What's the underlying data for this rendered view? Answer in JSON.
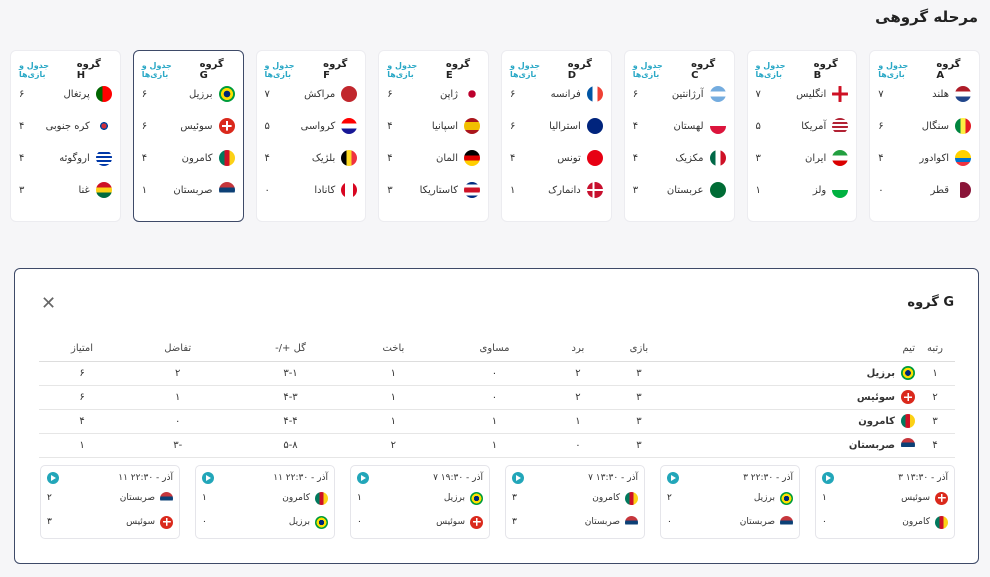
{
  "page_title": "مرحله گروهی",
  "groups": [
    {
      "name": "گروه A",
      "link": "جدول و بازی‌ها",
      "teams": [
        {
          "name": "هلند",
          "pts": "۷",
          "flag": "nl"
        },
        {
          "name": "سنگال",
          "pts": "۶",
          "flag": "sn"
        },
        {
          "name": "اکوادور",
          "pts": "۴",
          "flag": "ec"
        },
        {
          "name": "قطر",
          "pts": "۰",
          "flag": "qa"
        }
      ]
    },
    {
      "name": "گروه B",
      "link": "جدول و بازی‌ها",
      "teams": [
        {
          "name": "انگلیس",
          "pts": "۷",
          "flag": "en"
        },
        {
          "name": "آمریکا",
          "pts": "۵",
          "flag": "us"
        },
        {
          "name": "ایران",
          "pts": "۳",
          "flag": "ir"
        },
        {
          "name": "ولز",
          "pts": "۱",
          "flag": "wl"
        }
      ]
    },
    {
      "name": "گروه C",
      "link": "جدول و بازی‌ها",
      "teams": [
        {
          "name": "آرژانتین",
          "pts": "۶",
          "flag": "ar"
        },
        {
          "name": "لهستان",
          "pts": "۴",
          "flag": "pl"
        },
        {
          "name": "مکزیک",
          "pts": "۴",
          "flag": "mx"
        },
        {
          "name": "عربستان",
          "pts": "۳",
          "flag": "sa"
        }
      ]
    },
    {
      "name": "گروه D",
      "link": "جدول و بازی‌ها",
      "teams": [
        {
          "name": "فرانسه",
          "pts": "۶",
          "flag": "fr"
        },
        {
          "name": "استرالیا",
          "pts": "۶",
          "flag": "au"
        },
        {
          "name": "تونس",
          "pts": "۴",
          "flag": "tn"
        },
        {
          "name": "دانمارک",
          "pts": "۱",
          "flag": "dk"
        }
      ]
    },
    {
      "name": "گروه E",
      "link": "جدول و بازی‌ها",
      "teams": [
        {
          "name": "ژاپن",
          "pts": "۶",
          "flag": "jp"
        },
        {
          "name": "اسپانیا",
          "pts": "۴",
          "flag": "es"
        },
        {
          "name": "المان",
          "pts": "۴",
          "flag": "de"
        },
        {
          "name": "کاستاریکا",
          "pts": "۳",
          "flag": "cr"
        }
      ]
    },
    {
      "name": "گروه F",
      "link": "جدول و بازی‌ها",
      "teams": [
        {
          "name": "مراکش",
          "pts": "۷",
          "flag": "ma"
        },
        {
          "name": "کرواسی",
          "pts": "۵",
          "flag": "hr"
        },
        {
          "name": "بلژیک",
          "pts": "۴",
          "flag": "be"
        },
        {
          "name": "کانادا",
          "pts": "۰",
          "flag": "ca"
        }
      ]
    },
    {
      "name": "گروه G",
      "link": "جدول و بازی‌ها",
      "selected": true,
      "teams": [
        {
          "name": "برزیل",
          "pts": "۶",
          "flag": "br"
        },
        {
          "name": "سوئیس",
          "pts": "۶",
          "flag": "ch"
        },
        {
          "name": "کامرون",
          "pts": "۴",
          "flag": "cm"
        },
        {
          "name": "صربستان",
          "pts": "۱",
          "flag": "rs"
        }
      ]
    },
    {
      "name": "گروه H",
      "link": "جدول و بازی‌ها",
      "teams": [
        {
          "name": "پرتغال",
          "pts": "۶",
          "flag": "pt"
        },
        {
          "name": "کره جنوبی",
          "pts": "۴",
          "flag": "kr"
        },
        {
          "name": "اروگوئه",
          "pts": "۴",
          "flag": "uy"
        },
        {
          "name": "غنا",
          "pts": "۳",
          "flag": "gh"
        }
      ]
    }
  ],
  "detail": {
    "title": "گروه G",
    "columns": [
      "رتبه",
      "تیم",
      "بازی",
      "برد",
      "مساوی",
      "باخت",
      "گل +/-",
      "تفاضل",
      "امتیاز"
    ],
    "rows": [
      {
        "rank": "۱",
        "team": "برزیل",
        "flag": "br",
        "p": "۳",
        "w": "۲",
        "d": "۰",
        "l": "۱",
        "g": "۳-۱",
        "diff": "۲",
        "pts": "۶"
      },
      {
        "rank": "۲",
        "team": "سوئیس",
        "flag": "ch",
        "p": "۳",
        "w": "۲",
        "d": "۰",
        "l": "۱",
        "g": "۴-۳",
        "diff": "۱",
        "pts": "۶"
      },
      {
        "rank": "۳",
        "team": "کامرون",
        "flag": "cm",
        "p": "۳",
        "w": "۱",
        "d": "۱",
        "l": "۱",
        "g": "۴-۴",
        "diff": "۰",
        "pts": "۴"
      },
      {
        "rank": "۴",
        "team": "صربستان",
        "flag": "rs",
        "p": "۳",
        "w": "۰",
        "d": "۱",
        "l": "۲",
        "g": "۵-۸",
        "diff": "-۳",
        "pts": "۱"
      }
    ],
    "matches": [
      {
        "date": "۳ آذر - ۱۳:۳۰",
        "a": {
          "name": "سوئیس",
          "flag": "ch",
          "score": "۱"
        },
        "b": {
          "name": "کامرون",
          "flag": "cm",
          "score": "۰"
        }
      },
      {
        "date": "۳ آذر - ۲۲:۳۰",
        "a": {
          "name": "برزیل",
          "flag": "br",
          "score": "۲"
        },
        "b": {
          "name": "صربستان",
          "flag": "rs",
          "score": "۰"
        }
      },
      {
        "date": "۷ آذر - ۱۳:۳۰",
        "a": {
          "name": "کامرون",
          "flag": "cm",
          "score": "۳"
        },
        "b": {
          "name": "صربستان",
          "flag": "rs",
          "score": "۳"
        }
      },
      {
        "date": "۷ آذر - ۱۹:۳۰",
        "a": {
          "name": "برزیل",
          "flag": "br",
          "score": "۱"
        },
        "b": {
          "name": "سوئیس",
          "flag": "ch",
          "score": "۰"
        }
      },
      {
        "date": "۱۱ آذر - ۲۲:۳۰",
        "a": {
          "name": "کامرون",
          "flag": "cm",
          "score": "۱"
        },
        "b": {
          "name": "برزیل",
          "flag": "br",
          "score": "۰"
        }
      },
      {
        "date": "۱۱ آذر - ۲۲:۳۰",
        "a": {
          "name": "صربستان",
          "flag": "rs",
          "score": "۲"
        },
        "b": {
          "name": "سوئیس",
          "flag": "ch",
          "score": "۳"
        }
      }
    ]
  }
}
